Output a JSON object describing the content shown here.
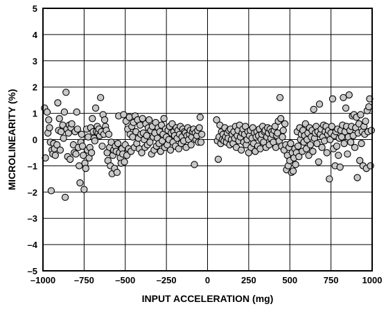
{
  "chart_data": {
    "type": "scatter",
    "xlabel": "INPUT ACCELERATION (mg)",
    "ylabel": "MICROLINEARITY (%)",
    "xlim": [
      -1000,
      1000
    ],
    "ylim": [
      -5,
      5
    ],
    "xticks": [
      -1000,
      -750,
      -500,
      -250,
      0,
      250,
      500,
      750,
      1000
    ],
    "xtick_labels": [
      "–1000",
      "–750",
      "–500",
      "–250",
      "0",
      "250",
      "500",
      "750",
      "1000"
    ],
    "yticks": [
      5,
      4,
      3,
      2,
      1,
      0,
      -1,
      -2,
      -3,
      -4,
      -5
    ],
    "ytick_labels": [
      "5",
      "4",
      "3",
      "2",
      "1",
      "0",
      "–1",
      "–2",
      "–3",
      "–4",
      "–5"
    ],
    "grid": true,
    "marker_fill": "#c8c8c8",
    "marker_edge": "#000000",
    "points": [
      [
        -990,
        1.2
      ],
      [
        -985,
        -0.7
      ],
      [
        -975,
        1.05
      ],
      [
        -970,
        0.25
      ],
      [
        -965,
        0.75
      ],
      [
        -960,
        0.45
      ],
      [
        -955,
        -0.1
      ],
      [
        -950,
        -1.95
      ],
      [
        -945,
        -0.4
      ],
      [
        -940,
        -0.55
      ],
      [
        -935,
        -0.15
      ],
      [
        -930,
        -0.35
      ],
      [
        -925,
        -0.6
      ],
      [
        -915,
        -0.2
      ],
      [
        -910,
        1.4
      ],
      [
        -905,
        0.35
      ],
      [
        -900,
        0.8
      ],
      [
        -895,
        -0.4
      ],
      [
        -890,
        0.3
      ],
      [
        -880,
        0.55
      ],
      [
        -875,
        0.05
      ],
      [
        -870,
        1.05
      ],
      [
        -865,
        -2.2
      ],
      [
        -860,
        1.8
      ],
      [
        -855,
        0.4
      ],
      [
        -850,
        -0.65
      ],
      [
        -845,
        0.25
      ],
      [
        -840,
        0.55
      ],
      [
        -835,
        -0.75
      ],
      [
        -830,
        0.45
      ],
      [
        -825,
        0.6
      ],
      [
        -815,
        -0.2
      ],
      [
        -810,
        -0.5
      ],
      [
        -805,
        0.3
      ],
      [
        -800,
        -0.55
      ],
      [
        -795,
        1.05
      ],
      [
        -790,
        0.4
      ],
      [
        -785,
        -0.3
      ],
      [
        -780,
        -1.0
      ],
      [
        -775,
        -1.65
      ],
      [
        -770,
        -0.1
      ],
      [
        -765,
        0.2
      ],
      [
        -760,
        -0.25
      ],
      [
        -755,
        -0.6
      ],
      [
        -750,
        -1.9
      ],
      [
        -745,
        -0.9
      ],
      [
        -740,
        -1.1
      ],
      [
        -735,
        0.4
      ],
      [
        -730,
        -0.4
      ],
      [
        -725,
        0.1
      ],
      [
        -720,
        -0.7
      ],
      [
        -715,
        -0.3
      ],
      [
        -710,
        0.45
      ],
      [
        -705,
        -0.5
      ],
      [
        -700,
        0.8
      ],
      [
        -695,
        0.3
      ],
      [
        -690,
        0.05
      ],
      [
        -685,
        -0.05
      ],
      [
        -680,
        1.2
      ],
      [
        -675,
        0.3
      ],
      [
        -670,
        0.5
      ],
      [
        -665,
        0.25
      ],
      [
        -660,
        0.4
      ],
      [
        -655,
        0.15
      ],
      [
        -650,
        1.6
      ],
      [
        -645,
        0.3
      ],
      [
        -640,
        -0.25
      ],
      [
        -635,
        0.95
      ],
      [
        -630,
        0.2
      ],
      [
        -625,
        0.75
      ],
      [
        -620,
        0.5
      ],
      [
        -615,
        0.35
      ],
      [
        -610,
        -0.5
      ],
      [
        -605,
        -0.8
      ],
      [
        -600,
        0.2
      ],
      [
        -595,
        -0.3
      ],
      [
        -590,
        -1.0
      ],
      [
        -585,
        -0.1
      ],
      [
        -580,
        -1.3
      ],
      [
        -575,
        -0.6
      ],
      [
        -570,
        -0.4
      ],
      [
        -565,
        -1.1
      ],
      [
        -560,
        -0.25
      ],
      [
        -555,
        -0.45
      ],
      [
        -550,
        -1.25
      ],
      [
        -545,
        -0.15
      ],
      [
        -540,
        0.9
      ],
      [
        -535,
        -0.5
      ],
      [
        -530,
        -0.7
      ],
      [
        -525,
        -0.9
      ],
      [
        -520,
        -0.35
      ],
      [
        -515,
        -0.55
      ],
      [
        -510,
        0.95
      ],
      [
        -505,
        -0.85
      ],
      [
        -500,
        -0.2
      ],
      [
        -495,
        0.7
      ],
      [
        -490,
        -0.6
      ],
      [
        -485,
        0.4
      ],
      [
        -480,
        -0.35
      ],
      [
        -475,
        0.85
      ],
      [
        -470,
        0.2
      ],
      [
        -465,
        -0.45
      ],
      [
        -460,
        0.5
      ],
      [
        -455,
        0.1
      ],
      [
        -450,
        0.65
      ],
      [
        -445,
        -0.3
      ],
      [
        -440,
        0.9
      ],
      [
        -435,
        0.3
      ],
      [
        -430,
        -0.15
      ],
      [
        -425,
        0.75
      ],
      [
        -420,
        0.05
      ],
      [
        -415,
        -0.35
      ],
      [
        -410,
        0.55
      ],
      [
        -405,
        0.2
      ],
      [
        -400,
        -0.5
      ],
      [
        -395,
        0.8
      ],
      [
        -390,
        0.25
      ],
      [
        -385,
        0.0
      ],
      [
        -380,
        -0.3
      ],
      [
        -375,
        0.6
      ],
      [
        -370,
        0.15
      ],
      [
        -365,
        -0.2
      ],
      [
        -360,
        0.45
      ],
      [
        -355,
        0.75
      ],
      [
        -350,
        -0.1
      ],
      [
        -345,
        0.35
      ],
      [
        -340,
        -0.55
      ],
      [
        -335,
        0.5
      ],
      [
        -330,
        0.1
      ],
      [
        -325,
        -0.4
      ],
      [
        -320,
        0.25
      ],
      [
        -315,
        0.65
      ],
      [
        -310,
        -0.25
      ],
      [
        -305,
        0.05
      ],
      [
        -300,
        0.45
      ],
      [
        -295,
        -0.15
      ],
      [
        -290,
        0.3
      ],
      [
        -285,
        -0.45
      ],
      [
        -280,
        0.55
      ],
      [
        -275,
        -0.05
      ],
      [
        -270,
        0.2
      ],
      [
        -265,
        0.8
      ],
      [
        -260,
        -0.3
      ],
      [
        -255,
        0.4
      ],
      [
        -250,
        0.1
      ],
      [
        -245,
        -0.2
      ],
      [
        -240,
        0.35
      ],
      [
        -235,
        0.0
      ],
      [
        -230,
        0.5
      ],
      [
        -225,
        -0.4
      ],
      [
        -220,
        0.25
      ],
      [
        -215,
        0.6
      ],
      [
        -210,
        -0.1
      ],
      [
        -205,
        0.3
      ],
      [
        -200,
        0.15
      ],
      [
        -195,
        -0.25
      ],
      [
        -190,
        0.45
      ],
      [
        -185,
        0.05
      ],
      [
        -180,
        0.35
      ],
      [
        -175,
        -0.35
      ],
      [
        -170,
        0.2
      ],
      [
        -165,
        0.5
      ],
      [
        -160,
        -0.15
      ],
      [
        -155,
        0.1
      ],
      [
        -150,
        0.4
      ],
      [
        -145,
        -0.05
      ],
      [
        -140,
        0.3
      ],
      [
        -135,
        0.25
      ],
      [
        -130,
        -0.3
      ],
      [
        -125,
        0.15
      ],
      [
        -120,
        0.45
      ],
      [
        -115,
        0.0
      ],
      [
        -110,
        0.2
      ],
      [
        -105,
        0.35
      ],
      [
        -100,
        -0.2
      ],
      [
        -95,
        0.1
      ],
      [
        -90,
        0.3
      ],
      [
        -85,
        0.4
      ],
      [
        -80,
        -0.95
      ],
      [
        -75,
        0.25
      ],
      [
        -70,
        0.0
      ],
      [
        -65,
        0.15
      ],
      [
        -60,
        0.35
      ],
      [
        -55,
        -0.1
      ],
      [
        -50,
        0.45
      ],
      [
        -45,
        0.85
      ],
      [
        -40,
        -0.1
      ],
      [
        -35,
        0.2
      ],
      [
        55,
        0.75
      ],
      [
        60,
        -0.05
      ],
      [
        65,
        -0.75
      ],
      [
        70,
        0.1
      ],
      [
        75,
        0.55
      ],
      [
        80,
        -0.15
      ],
      [
        85,
        0.3
      ],
      [
        90,
        0.0
      ],
      [
        95,
        0.2
      ],
      [
        100,
        -0.05
      ],
      [
        105,
        0.45
      ],
      [
        110,
        0.1
      ],
      [
        115,
        -0.1
      ],
      [
        120,
        0.25
      ],
      [
        125,
        0.05
      ],
      [
        130,
        0.35
      ],
      [
        135,
        -0.2
      ],
      [
        140,
        0.4
      ],
      [
        145,
        0.0
      ],
      [
        150,
        0.2
      ],
      [
        155,
        -0.15
      ],
      [
        160,
        0.3
      ],
      [
        165,
        0.05
      ],
      [
        170,
        0.5
      ],
      [
        175,
        -0.3
      ],
      [
        180,
        0.15
      ],
      [
        185,
        0.35
      ],
      [
        190,
        -0.05
      ],
      [
        195,
        0.55
      ],
      [
        200,
        0.1
      ],
      [
        205,
        -0.4
      ],
      [
        210,
        0.25
      ],
      [
        215,
        0.4
      ],
      [
        220,
        -0.1
      ],
      [
        225,
        0.2
      ],
      [
        230,
        0.5
      ],
      [
        235,
        -0.2
      ],
      [
        240,
        0.0
      ],
      [
        245,
        0.3
      ],
      [
        250,
        -0.5
      ],
      [
        255,
        0.15
      ],
      [
        260,
        0.35
      ],
      [
        265,
        -0.3
      ],
      [
        270,
        0.05
      ],
      [
        275,
        0.45
      ],
      [
        280,
        -0.15
      ],
      [
        285,
        0.25
      ],
      [
        290,
        -0.45
      ],
      [
        295,
        0.1
      ],
      [
        300,
        0.3
      ],
      [
        305,
        -0.25
      ],
      [
        310,
        0.15
      ],
      [
        315,
        0.4
      ],
      [
        320,
        -0.35
      ],
      [
        325,
        0.0
      ],
      [
        330,
        0.2
      ],
      [
        335,
        0.5
      ],
      [
        340,
        -0.1
      ],
      [
        345,
        0.3
      ],
      [
        350,
        0.35
      ],
      [
        355,
        -0.3
      ],
      [
        360,
        0.1
      ],
      [
        365,
        0.45
      ],
      [
        370,
        0.25
      ],
      [
        375,
        -0.2
      ],
      [
        380,
        0.4
      ],
      [
        385,
        0.05
      ],
      [
        390,
        0.3
      ],
      [
        395,
        0.2
      ],
      [
        400,
        -0.1
      ],
      [
        405,
        0.35
      ],
      [
        410,
        0.5
      ],
      [
        415,
        -0.3
      ],
      [
        420,
        0.15
      ],
      [
        425,
        0.25
      ],
      [
        430,
        0.7
      ],
      [
        435,
        -0.05
      ],
      [
        440,
        1.6
      ],
      [
        445,
        0.8
      ],
      [
        450,
        -0.25
      ],
      [
        455,
        0.1
      ],
      [
        460,
        0.35
      ],
      [
        465,
        -0.4
      ],
      [
        470,
        0.6
      ],
      [
        475,
        -0.2
      ],
      [
        480,
        -1.15
      ],
      [
        485,
        -0.6
      ],
      [
        490,
        -1.0
      ],
      [
        495,
        -0.3
      ],
      [
        500,
        -0.8
      ],
      [
        505,
        -0.15
      ],
      [
        510,
        -1.25
      ],
      [
        515,
        -0.5
      ],
      [
        520,
        -1.2
      ],
      [
        525,
        -0.7
      ],
      [
        530,
        -0.35
      ],
      [
        535,
        -0.95
      ],
      [
        540,
        -0.5
      ],
      [
        545,
        0.3
      ],
      [
        550,
        -0.25
      ],
      [
        555,
        -0.65
      ],
      [
        560,
        0.45
      ],
      [
        565,
        0.0
      ],
      [
        570,
        0.2
      ],
      [
        575,
        -0.45
      ],
      [
        580,
        0.35
      ],
      [
        585,
        -0.1
      ],
      [
        590,
        0.15
      ],
      [
        595,
        0.6
      ],
      [
        600,
        -0.35
      ],
      [
        605,
        0.0
      ],
      [
        610,
        0.25
      ],
      [
        615,
        -0.6
      ],
      [
        620,
        0.45
      ],
      [
        625,
        -0.2
      ],
      [
        630,
        0.1
      ],
      [
        635,
        0.35
      ],
      [
        640,
        -0.45
      ],
      [
        645,
        1.15
      ],
      [
        650,
        0.05
      ],
      [
        655,
        0.25
      ],
      [
        660,
        0.5
      ],
      [
        665,
        -0.15
      ],
      [
        670,
        0.3
      ],
      [
        675,
        -0.85
      ],
      [
        680,
        1.35
      ],
      [
        685,
        0.2
      ],
      [
        690,
        0.4
      ],
      [
        695,
        -0.3
      ],
      [
        700,
        0.1
      ],
      [
        705,
        0.55
      ],
      [
        710,
        -0.05
      ],
      [
        715,
        0.3
      ],
      [
        720,
        0.5
      ],
      [
        725,
        -0.5
      ],
      [
        730,
        0.2
      ],
      [
        735,
        0.35
      ],
      [
        740,
        -1.5
      ],
      [
        745,
        0.0
      ],
      [
        750,
        0.25
      ],
      [
        755,
        0.5
      ],
      [
        760,
        1.55
      ],
      [
        765,
        -0.35
      ],
      [
        770,
        0.15
      ],
      [
        775,
        -1.0
      ],
      [
        780,
        0.3
      ],
      [
        785,
        -0.25
      ],
      [
        790,
        0.4
      ],
      [
        795,
        -0.6
      ],
      [
        800,
        0.05
      ],
      [
        805,
        -1.05
      ],
      [
        810,
        0.35
      ],
      [
        815,
        0.1
      ],
      [
        820,
        0.55
      ],
      [
        825,
        1.6
      ],
      [
        830,
        -0.15
      ],
      [
        835,
        0.3
      ],
      [
        840,
        1.2
      ],
      [
        845,
        0.5
      ],
      [
        850,
        -0.55
      ],
      [
        855,
        0.1
      ],
      [
        860,
        1.7
      ],
      [
        865,
        0.35
      ],
      [
        870,
        -0.1
      ],
      [
        875,
        0.5
      ],
      [
        880,
        0.9
      ],
      [
        885,
        0.15
      ],
      [
        890,
        0.95
      ],
      [
        895,
        -0.3
      ],
      [
        900,
        0.45
      ],
      [
        905,
        0.85
      ],
      [
        910,
        -1.45
      ],
      [
        915,
        0.25
      ],
      [
        920,
        0.6
      ],
      [
        925,
        -0.8
      ],
      [
        930,
        0.95
      ],
      [
        935,
        -0.15
      ],
      [
        940,
        0.3
      ],
      [
        945,
        -1.0
      ],
      [
        950,
        0.5
      ],
      [
        955,
        0.2
      ],
      [
        960,
        0.7
      ],
      [
        965,
        -1.1
      ],
      [
        970,
        1.1
      ],
      [
        975,
        0.3
      ],
      [
        980,
        1.25
      ],
      [
        985,
        1.55
      ],
      [
        990,
        -1.0
      ],
      [
        995,
        0.35
      ]
    ]
  }
}
